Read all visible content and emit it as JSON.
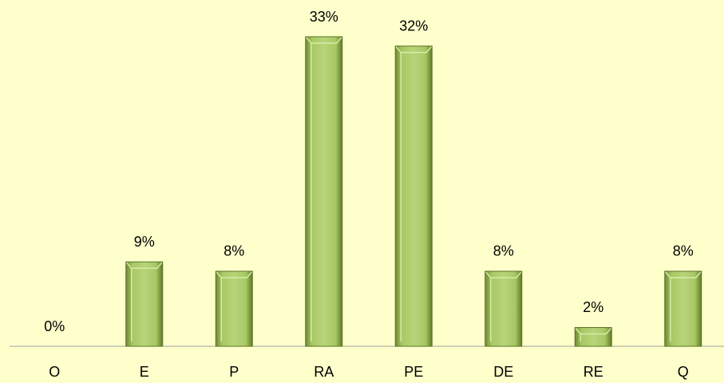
{
  "chart_data": {
    "type": "bar",
    "categories": [
      "O",
      "E",
      "P",
      "RA",
      "PE",
      "DE",
      "RE",
      "Q"
    ],
    "values": [
      0,
      9,
      8,
      33,
      32,
      8,
      2,
      8
    ],
    "value_labels": [
      "0%",
      "9%",
      "8%",
      "33%",
      "32%",
      "8%",
      "2%",
      "8%"
    ],
    "color": "#9bbb59",
    "ylim": [
      0,
      33
    ]
  }
}
